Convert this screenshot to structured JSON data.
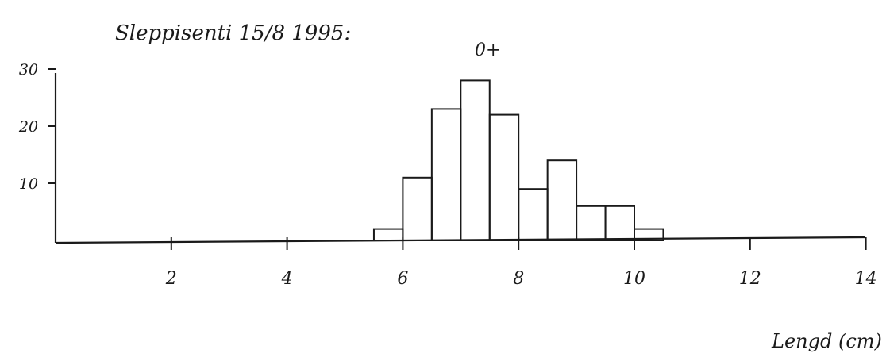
{
  "chart_data": {
    "type": "bar",
    "title": "Slеppisеnti 15/8 1995:",
    "subtitle": "0+",
    "xlabel": "Lengd (cm)",
    "ylabel": "",
    "xlim": [
      0,
      14
    ],
    "ylim": [
      0,
      30
    ],
    "x_ticks": [
      "2",
      "4",
      "6",
      "8",
      "10",
      "12",
      "14"
    ],
    "y_ticks": [
      "10",
      "20",
      "30"
    ],
    "bin_width": 0.5,
    "bins": [
      {
        "start": 5.5,
        "value": 2
      },
      {
        "start": 6.0,
        "value": 11
      },
      {
        "start": 6.5,
        "value": 23
      },
      {
        "start": 7.0,
        "value": 28
      },
      {
        "start": 7.5,
        "value": 22
      },
      {
        "start": 8.0,
        "value": 9
      },
      {
        "start": 8.5,
        "value": 14
      },
      {
        "start": 9.0,
        "value": 6
      },
      {
        "start": 9.5,
        "value": 6
      },
      {
        "start": 10.0,
        "value": 2
      }
    ],
    "grid": false,
    "legend": "none"
  }
}
